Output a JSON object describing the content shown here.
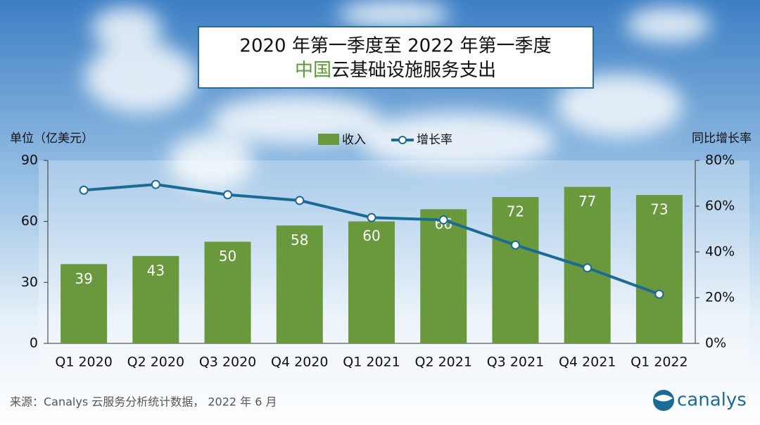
{
  "chart_data": {
    "type": "bar",
    "title": "2020 年第一季度至 2022 年第一季度",
    "subtitle_highlight": "中国",
    "subtitle": "云基础设施服务支出",
    "categories": [
      "Q1 2020",
      "Q2 2020",
      "Q3 2020",
      "Q4 2020",
      "Q1 2021",
      "Q2 2021",
      "Q3 2021",
      "Q4 2021",
      "Q1 2022"
    ],
    "series": [
      {
        "name": "收入",
        "type": "bar",
        "color": "#6a983c",
        "values": [
          39,
          43,
          50,
          58,
          60,
          66,
          72,
          77,
          73
        ]
      },
      {
        "name": "增长率",
        "type": "line",
        "axis": "y2",
        "color": "#1b6b94",
        "values": [
          67,
          69.5,
          65,
          62.5,
          55,
          54,
          43,
          33,
          21.5
        ]
      }
    ],
    "ylim": [
      0,
      90
    ],
    "yticks": [
      0,
      30,
      60,
      90
    ],
    "y2lim": [
      0,
      80
    ],
    "y2ticks": [
      {
        "value": 0,
        "label": "0%"
      },
      {
        "value": 20,
        "label": "20%"
      },
      {
        "value": 40,
        "label": "40%"
      },
      {
        "value": 60,
        "label": "60%"
      },
      {
        "value": 80,
        "label": "80%"
      }
    ],
    "y_label": "单位（亿美元）",
    "y2_label": "同比增长率",
    "source": "来源：Canalys 云服务分析统计数据， 2022 年 6 月",
    "logo": "canalys"
  }
}
